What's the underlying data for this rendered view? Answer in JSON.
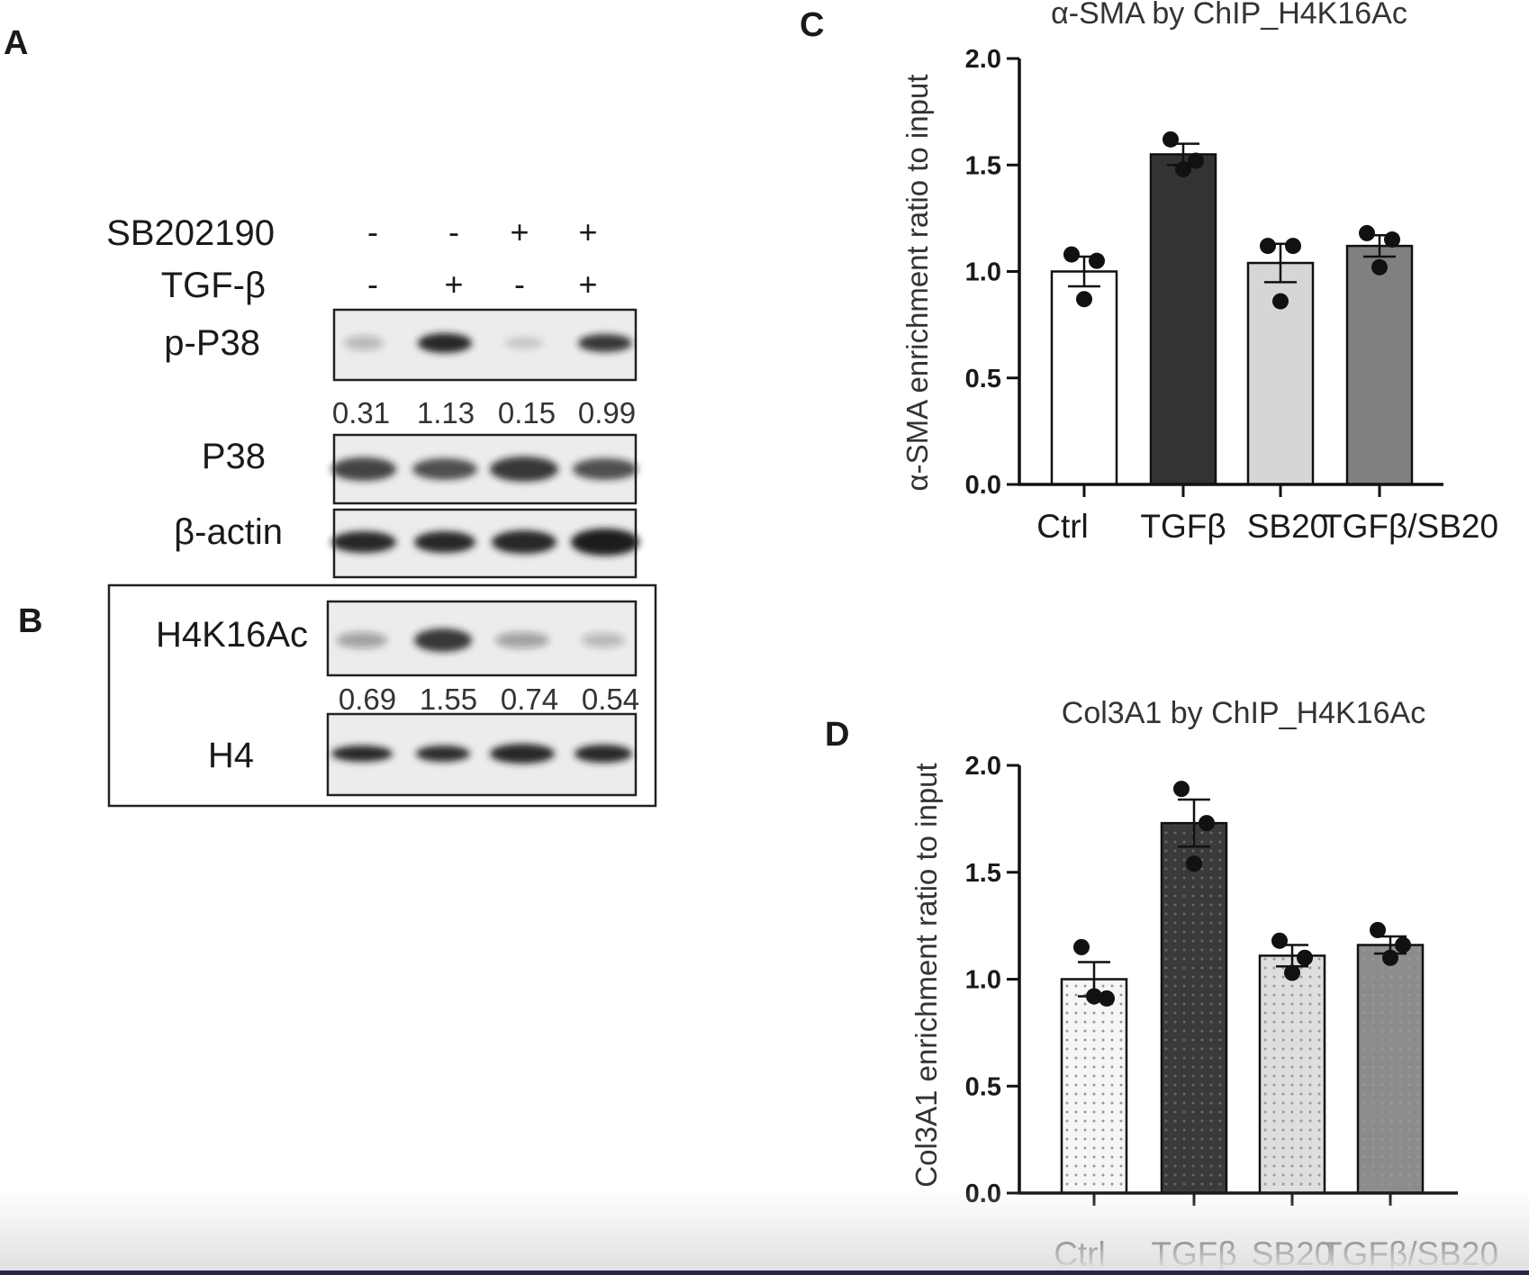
{
  "panels": {
    "a": "A",
    "b": "B",
    "c": "C",
    "d": "D"
  },
  "blot": {
    "treatments": [
      {
        "label": "SB202190",
        "signs": [
          "-",
          "-",
          "+",
          "+"
        ]
      },
      {
        "label": "TGF-β",
        "signs": [
          "-",
          "+",
          "-",
          "+"
        ]
      }
    ],
    "panel_a": [
      {
        "label": "p-P38",
        "quant": [
          "0.31",
          "1.13",
          "0.15",
          "0.99"
        ]
      },
      {
        "label": "P38"
      },
      {
        "label": "β-actin"
      }
    ],
    "panel_b": [
      {
        "label": "H4K16Ac",
        "quant": [
          "0.69",
          "1.55",
          "0.74",
          "0.54"
        ]
      },
      {
        "label": "H4"
      }
    ]
  },
  "chart_data": [
    {
      "type": "bar",
      "title": "α-SMA by ChIP_H4K16Ac",
      "ylabel": "α-SMA enrichment ratio to input",
      "xlabel": "",
      "categories": [
        "Ctrl",
        "TGFβ",
        "SB20",
        "TGFβ/SB20"
      ],
      "values": [
        1.0,
        1.55,
        1.04,
        1.12
      ],
      "sem": [
        0.07,
        0.05,
        0.09,
        0.05
      ],
      "points": [
        [
          1.08,
          1.05,
          0.87
        ],
        [
          1.62,
          1.52,
          1.48
        ],
        [
          1.12,
          1.12,
          0.86
        ],
        [
          1.18,
          1.15,
          1.02
        ]
      ],
      "ylim": [
        0,
        2.0
      ],
      "yticks": [
        "0.0",
        "0.5",
        "1.0",
        "1.5",
        "2.0"
      ],
      "colors": [
        "#ffffff",
        "#333333",
        "#d6d6d6",
        "#808080"
      ],
      "pattern": "solid",
      "grid": false
    },
    {
      "type": "bar",
      "title": "Col3A1 by ChIP_H4K16Ac",
      "ylabel": "Col3A1 enrichment ratio to input",
      "xlabel": "",
      "categories": [
        "Ctrl",
        "TGFβ",
        "SB20",
        "TGFβ/SB20"
      ],
      "values": [
        1.0,
        1.73,
        1.11,
        1.16
      ],
      "sem": [
        0.08,
        0.11,
        0.05,
        0.04
      ],
      "points": [
        [
          1.15,
          0.91,
          0.92
        ],
        [
          1.89,
          1.73,
          1.54
        ],
        [
          1.18,
          1.1,
          1.03
        ],
        [
          1.23,
          1.16,
          1.1
        ]
      ],
      "ylim": [
        0,
        2.0
      ],
      "yticks": [
        "0.0",
        "0.5",
        "1.0",
        "1.5",
        "2.0"
      ],
      "colors": [
        "#f6f6f6",
        "#3a3a3a",
        "#dedede",
        "#8c8c8c"
      ],
      "pattern": "dotted",
      "grid": false
    }
  ]
}
